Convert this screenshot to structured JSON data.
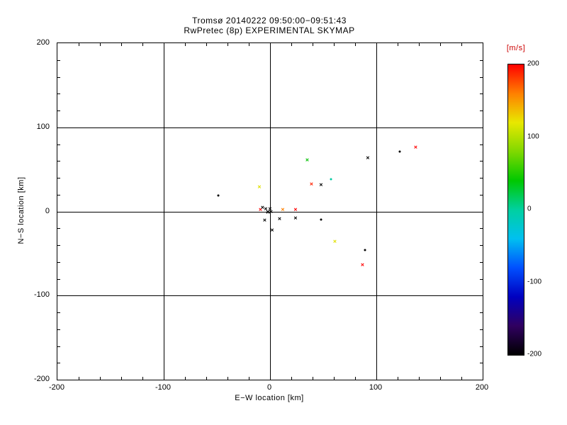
{
  "chart_data": {
    "type": "scatter",
    "title": "Tromsø 20140222 09:50:00−09:51:43",
    "subtitle": "RwPretec (8p) EXPERIMENTAL SKYMAP",
    "xlabel": "E−W location [km]",
    "ylabel": "N−S location [km]",
    "xlim": [
      -200,
      200
    ],
    "ylim": [
      -200,
      200
    ],
    "x_ticks": [
      -200,
      -100,
      0,
      100,
      200
    ],
    "y_ticks": [
      -200,
      -100,
      0,
      100,
      200
    ],
    "minor_tick_step": 20,
    "grid": true,
    "marker_glyphs": {
      "x": "×",
      "d": "dot"
    },
    "points": [
      {
        "x": 35,
        "y": 60,
        "color": "#00c000",
        "marker": "x"
      },
      {
        "x": 92,
        "y": 63,
        "color": "#000000",
        "marker": "x"
      },
      {
        "x": 122,
        "y": 71,
        "color": "#000000",
        "marker": "d"
      },
      {
        "x": 137,
        "y": 75,
        "color": "#ff0000",
        "marker": "x"
      },
      {
        "x": -49,
        "y": 19,
        "color": "#000000",
        "marker": "d"
      },
      {
        "x": -10,
        "y": 28,
        "color": "#e0e000",
        "marker": "x"
      },
      {
        "x": 39,
        "y": 32,
        "color": "#ff2000",
        "marker": "x"
      },
      {
        "x": 48,
        "y": 31,
        "color": "#000000",
        "marker": "x"
      },
      {
        "x": 57,
        "y": 38,
        "color": "#00c8a0",
        "marker": "d"
      },
      {
        "x": -9,
        "y": 1,
        "color": "#ff0000",
        "marker": "x"
      },
      {
        "x": -7,
        "y": 4,
        "color": "#000000",
        "marker": "x"
      },
      {
        "x": -4,
        "y": 2,
        "color": "#000000",
        "marker": "x"
      },
      {
        "x": -2,
        "y": 0,
        "color": "#000000",
        "marker": "x",
        "size": 11
      },
      {
        "x": 0,
        "y": 2,
        "color": "#000000",
        "marker": "x"
      },
      {
        "x": 1,
        "y": -1,
        "color": "#000000",
        "marker": "x"
      },
      {
        "x": 12,
        "y": 1,
        "color": "#ff8000",
        "marker": "x"
      },
      {
        "x": 24,
        "y": 1,
        "color": "#ff0000",
        "marker": "x"
      },
      {
        "x": -5,
        "y": -11,
        "color": "#000000",
        "marker": "x"
      },
      {
        "x": 9,
        "y": -10,
        "color": "#000000",
        "marker": "x"
      },
      {
        "x": 24,
        "y": -9,
        "color": "#000000",
        "marker": "x"
      },
      {
        "x": 48,
        "y": -10,
        "color": "#000000",
        "marker": "d"
      },
      {
        "x": 2,
        "y": -23,
        "color": "#000000",
        "marker": "x"
      },
      {
        "x": 61,
        "y": -37,
        "color": "#e0e000",
        "marker": "x"
      },
      {
        "x": 89,
        "y": -46,
        "color": "#000000",
        "marker": "d"
      },
      {
        "x": 87,
        "y": -64,
        "color": "#ff0000",
        "marker": "x"
      }
    ],
    "colorbar": {
      "label": "[m/s]",
      "label_color": "#cc0000",
      "range": [
        -200,
        200
      ],
      "ticks": [
        200,
        100,
        0,
        -100,
        -200
      ],
      "colors_top_to_bottom": [
        "#ff0000",
        "#ff8000",
        "#e8e800",
        "#80d800",
        "#00c800",
        "#00d0a0",
        "#00c0f0",
        "#0050ff",
        "#0000c0",
        "#300060",
        "#000000"
      ]
    },
    "legend_position": "right-colorbar"
  }
}
